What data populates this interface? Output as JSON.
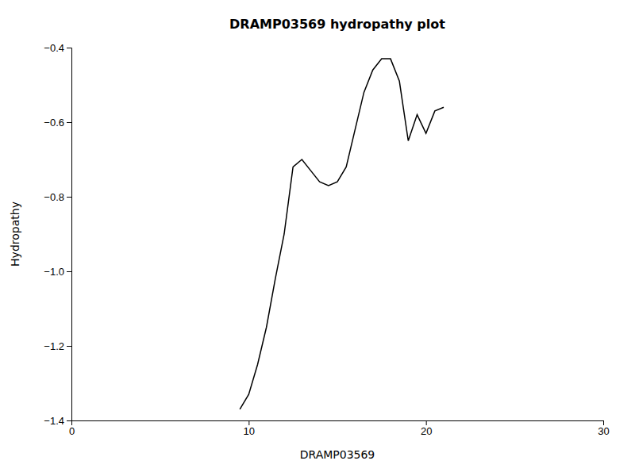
{
  "chart_data": {
    "type": "line",
    "title": "DRAMP03569 hydropathy plot",
    "xlabel": "DRAMP03569",
    "ylabel": "Hydropathy",
    "xlim": [
      0,
      30
    ],
    "ylim": [
      -1.4,
      -0.4
    ],
    "xticks": [
      0,
      10,
      20,
      30
    ],
    "yticks": [
      {
        "value": -1.4,
        "label": "−1.4"
      },
      {
        "value": -1.2,
        "label": "−1.2"
      },
      {
        "value": -1.0,
        "label": "−1.0"
      },
      {
        "value": -0.8,
        "label": "−0.8"
      },
      {
        "value": -0.6,
        "label": "−0.6"
      },
      {
        "value": -0.4,
        "label": "−0.4"
      }
    ],
    "x": [
      9.5,
      10.0,
      10.5,
      11.0,
      11.5,
      12.0,
      12.5,
      13.0,
      13.5,
      14.0,
      14.5,
      15.0,
      15.5,
      16.0,
      16.5,
      17.0,
      17.5,
      18.0,
      18.5,
      19.0,
      19.5,
      20.0,
      20.5,
      21.0
    ],
    "values": [
      -1.37,
      -1.33,
      -1.25,
      -1.15,
      -1.02,
      -0.9,
      -0.72,
      -0.7,
      -0.73,
      -0.76,
      -0.77,
      -0.76,
      -0.72,
      -0.62,
      -0.52,
      -0.46,
      -0.43,
      -0.43,
      -0.49,
      -0.65,
      -0.58,
      -0.63,
      -0.57,
      -0.56
    ],
    "color": "black",
    "grid": false
  }
}
